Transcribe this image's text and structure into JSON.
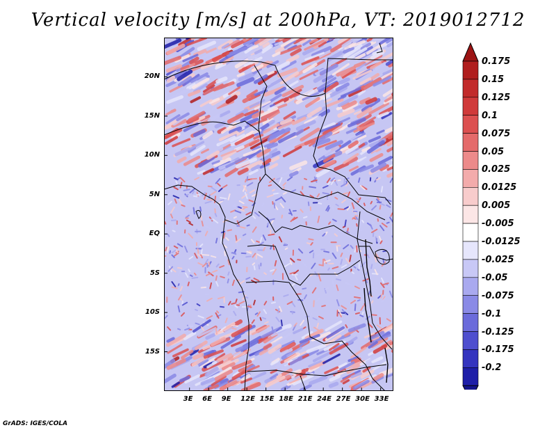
{
  "title": "Vertical velocity [m/s] at 200hPa, VT: 2019012712",
  "credit": "GrADS: IGES/COLA",
  "map": {
    "lon_range": [
      -1,
      35
    ],
    "lat_range": [
      -20,
      25
    ],
    "lon_ticks": [
      {
        "value": 3,
        "label": "3E"
      },
      {
        "value": 6,
        "label": "6E"
      },
      {
        "value": 9,
        "label": "9E"
      },
      {
        "value": 12,
        "label": "12E"
      },
      {
        "value": 15,
        "label": "15E"
      },
      {
        "value": 18,
        "label": "18E"
      },
      {
        "value": 21,
        "label": "21E"
      },
      {
        "value": 24,
        "label": "24E"
      },
      {
        "value": 27,
        "label": "27E"
      },
      {
        "value": 30,
        "label": "30E"
      },
      {
        "value": 33,
        "label": "33E"
      }
    ],
    "lat_ticks": [
      {
        "value": 20,
        "label": "20N"
      },
      {
        "value": 15,
        "label": "15N"
      },
      {
        "value": 10,
        "label": "10N"
      },
      {
        "value": 5,
        "label": "5N"
      },
      {
        "value": 0,
        "label": "EQ"
      },
      {
        "value": -5,
        "label": "5S"
      },
      {
        "value": -10,
        "label": "10S"
      },
      {
        "value": -15,
        "label": "15S"
      }
    ]
  },
  "colorbar": {
    "levels": [
      {
        "label": "0.175",
        "color": "#b01e1e"
      },
      {
        "label": "0.15",
        "color": "#c22b2b"
      },
      {
        "label": "0.125",
        "color": "#d03a3a"
      },
      {
        "label": "0.1",
        "color": "#dc5050"
      },
      {
        "label": "0.075",
        "color": "#e46a6a"
      },
      {
        "label": "0.05",
        "color": "#ec8a8a"
      },
      {
        "label": "0.025",
        "color": "#f3abab"
      },
      {
        "label": "0.0125",
        "color": "#f8cccc"
      },
      {
        "label": "0.005",
        "color": "#fce6e6"
      },
      {
        "label": "-0.005",
        "color": "#ffffff"
      },
      {
        "label": "-0.0125",
        "color": "#e6e6fc"
      },
      {
        "label": "-0.025",
        "color": "#c8c8f6"
      },
      {
        "label": "-0.05",
        "color": "#a9a9ef"
      },
      {
        "label": "-0.075",
        "color": "#8a8ae6"
      },
      {
        "label": "-0.1",
        "color": "#6b6bdb"
      },
      {
        "label": "-0.125",
        "color": "#4f4fcf"
      },
      {
        "label": "-0.175",
        "color": "#3434bf"
      },
      {
        "label": "-0.2",
        "color": "#1e1ea8"
      }
    ],
    "top_color": "#9c1414",
    "bottom_color": "#14148c"
  }
}
